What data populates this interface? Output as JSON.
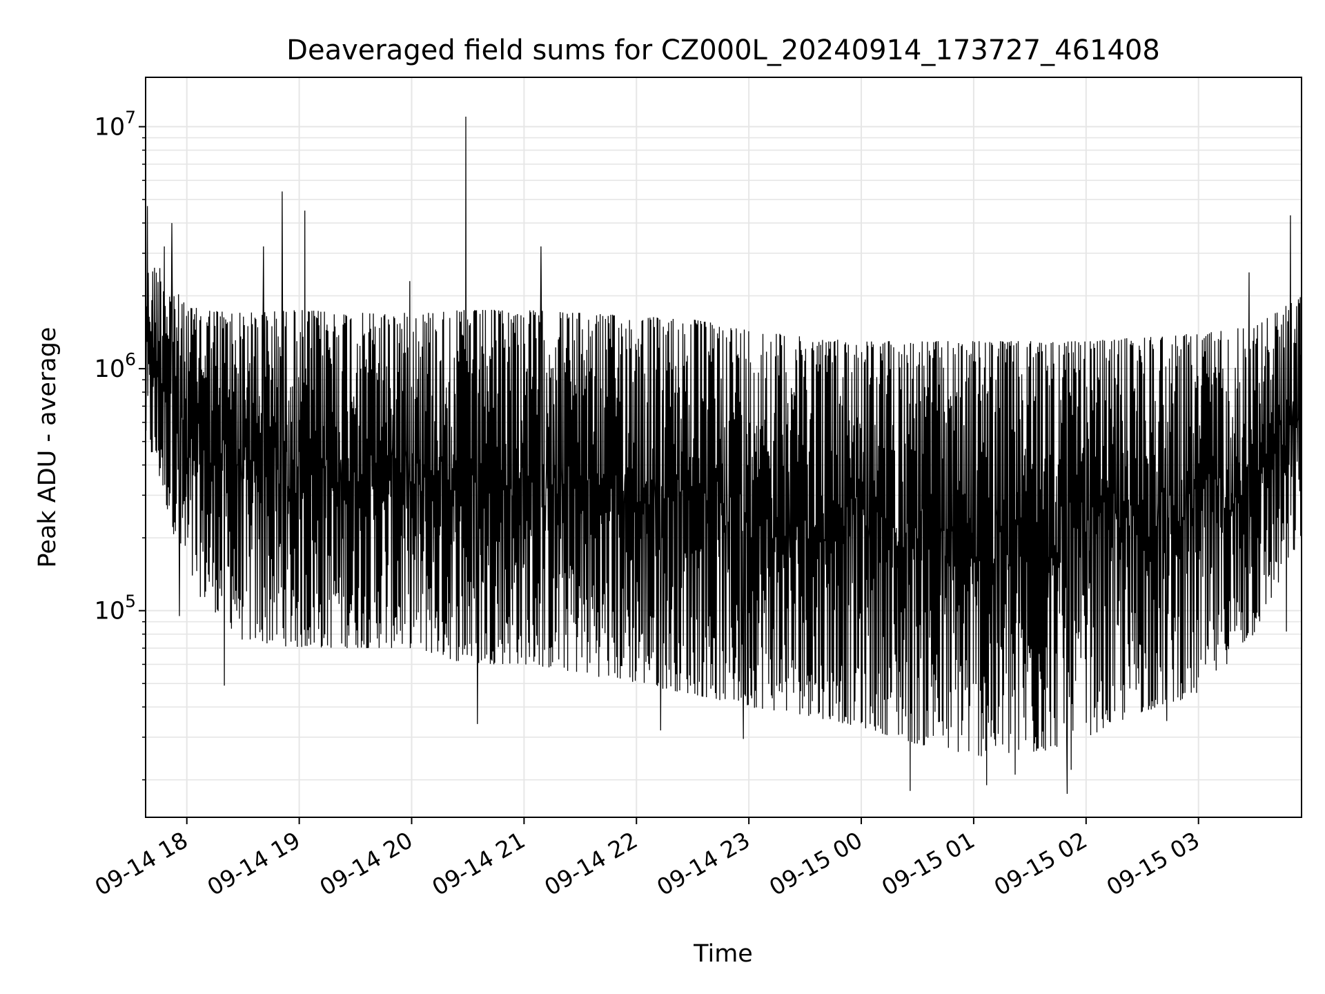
{
  "colors": {
    "line": "#000000",
    "grid": "#e6e6e6",
    "axes": "#000000",
    "background": "#ffffff"
  },
  "chart_data": {
    "type": "line",
    "title": "Deaveraged field sums for CZ000L_20240914_173727_461408",
    "xlabel": "Time",
    "ylabel": "Peak ADU - average",
    "yscale": "log",
    "ylim": [
      14000,
      16000000
    ],
    "xlim": [
      "2024-09-14 17:38",
      "2024-09-15 03:55"
    ],
    "grid": true,
    "x_tick_labels": [
      "09-14 18",
      "09-14 19",
      "09-14 20",
      "09-14 21",
      "09-14 22",
      "09-14 23",
      "09-15 00",
      "09-15 01",
      "09-15 02",
      "09-15 03"
    ],
    "x_tick_times": [
      "2024-09-14 18:00",
      "2024-09-14 19:00",
      "2024-09-14 20:00",
      "2024-09-14 21:00",
      "2024-09-14 22:00",
      "2024-09-14 23:00",
      "2024-09-15 00:00",
      "2024-09-15 01:00",
      "2024-09-15 02:00",
      "2024-09-15 03:00"
    ],
    "y_tick_values": [
      100000,
      1000000,
      10000000
    ],
    "y_tick_labels": [
      {
        "base": "10",
        "exp": "5"
      },
      {
        "base": "10",
        "exp": "6"
      },
      {
        "base": "10",
        "exp": "7"
      }
    ],
    "series": [
      {
        "name": "",
        "envelope": {
          "x": [
            "2024-09-14 17:38",
            "2024-09-14 17:45",
            "2024-09-14 18:00",
            "2024-09-14 18:30",
            "2024-09-14 19:00",
            "2024-09-14 19:30",
            "2024-09-14 20:00",
            "2024-09-14 20:30",
            "2024-09-14 21:00",
            "2024-09-14 21:30",
            "2024-09-14 22:00",
            "2024-09-14 22:30",
            "2024-09-14 23:00",
            "2024-09-14 23:30",
            "2024-09-15 00:00",
            "2024-09-15 00:30",
            "2024-09-15 01:00",
            "2024-09-15 01:30",
            "2024-09-15 02:00",
            "2024-09-15 02:30",
            "2024-09-15 03:00",
            "2024-09-15 03:30",
            "2024-09-15 03:55"
          ],
          "high": [
            2500000,
            2700000,
            1800000,
            1700000,
            1750000,
            1700000,
            1700000,
            1750000,
            1750000,
            1700000,
            1650000,
            1600000,
            1450000,
            1350000,
            1300000,
            1300000,
            1300000,
            1300000,
            1300000,
            1350000,
            1400000,
            1500000,
            2000000
          ],
          "low": [
            500000,
            350000,
            130000,
            75000,
            70000,
            70000,
            70000,
            60000,
            60000,
            55000,
            50000,
            45000,
            40000,
            37000,
            33000,
            28000,
            25000,
            25000,
            30000,
            38000,
            45000,
            80000,
            200000
          ]
        },
        "spikes": [
          {
            "x": "2024-09-14 17:39",
            "y": 4700000
          },
          {
            "x": "2024-09-14 17:48",
            "y": 3200000
          },
          {
            "x": "2024-09-14 17:52",
            "y": 4000000
          },
          {
            "x": "2024-09-14 18:41",
            "y": 3200000
          },
          {
            "x": "2024-09-14 18:51",
            "y": 5400000
          },
          {
            "x": "2024-09-14 19:03",
            "y": 4500000
          },
          {
            "x": "2024-09-14 19:59",
            "y": 2300000
          },
          {
            "x": "2024-09-14 20:29",
            "y": 11000000
          },
          {
            "x": "2024-09-14 21:09",
            "y": 3200000
          },
          {
            "x": "2024-09-15 03:27",
            "y": 2500000
          },
          {
            "x": "2024-09-15 03:49",
            "y": 4300000
          }
        ],
        "dips": [
          {
            "x": "2024-09-14 17:56",
            "y": 95000
          },
          {
            "x": "2024-09-14 18:20",
            "y": 49000
          },
          {
            "x": "2024-09-14 20:35",
            "y": 34000
          },
          {
            "x": "2024-09-14 22:13",
            "y": 32000
          },
          {
            "x": "2024-09-14 22:57",
            "y": 29500
          },
          {
            "x": "2024-09-15 00:26",
            "y": 18000
          },
          {
            "x": "2024-09-15 01:07",
            "y": 19000
          },
          {
            "x": "2024-09-15 01:22",
            "y": 21000
          },
          {
            "x": "2024-09-15 01:50",
            "y": 17500
          },
          {
            "x": "2024-09-15 01:52",
            "y": 22000
          },
          {
            "x": "2024-09-15 02:43",
            "y": 35000
          },
          {
            "x": "2024-09-15 03:47",
            "y": 82000
          }
        ]
      }
    ]
  }
}
